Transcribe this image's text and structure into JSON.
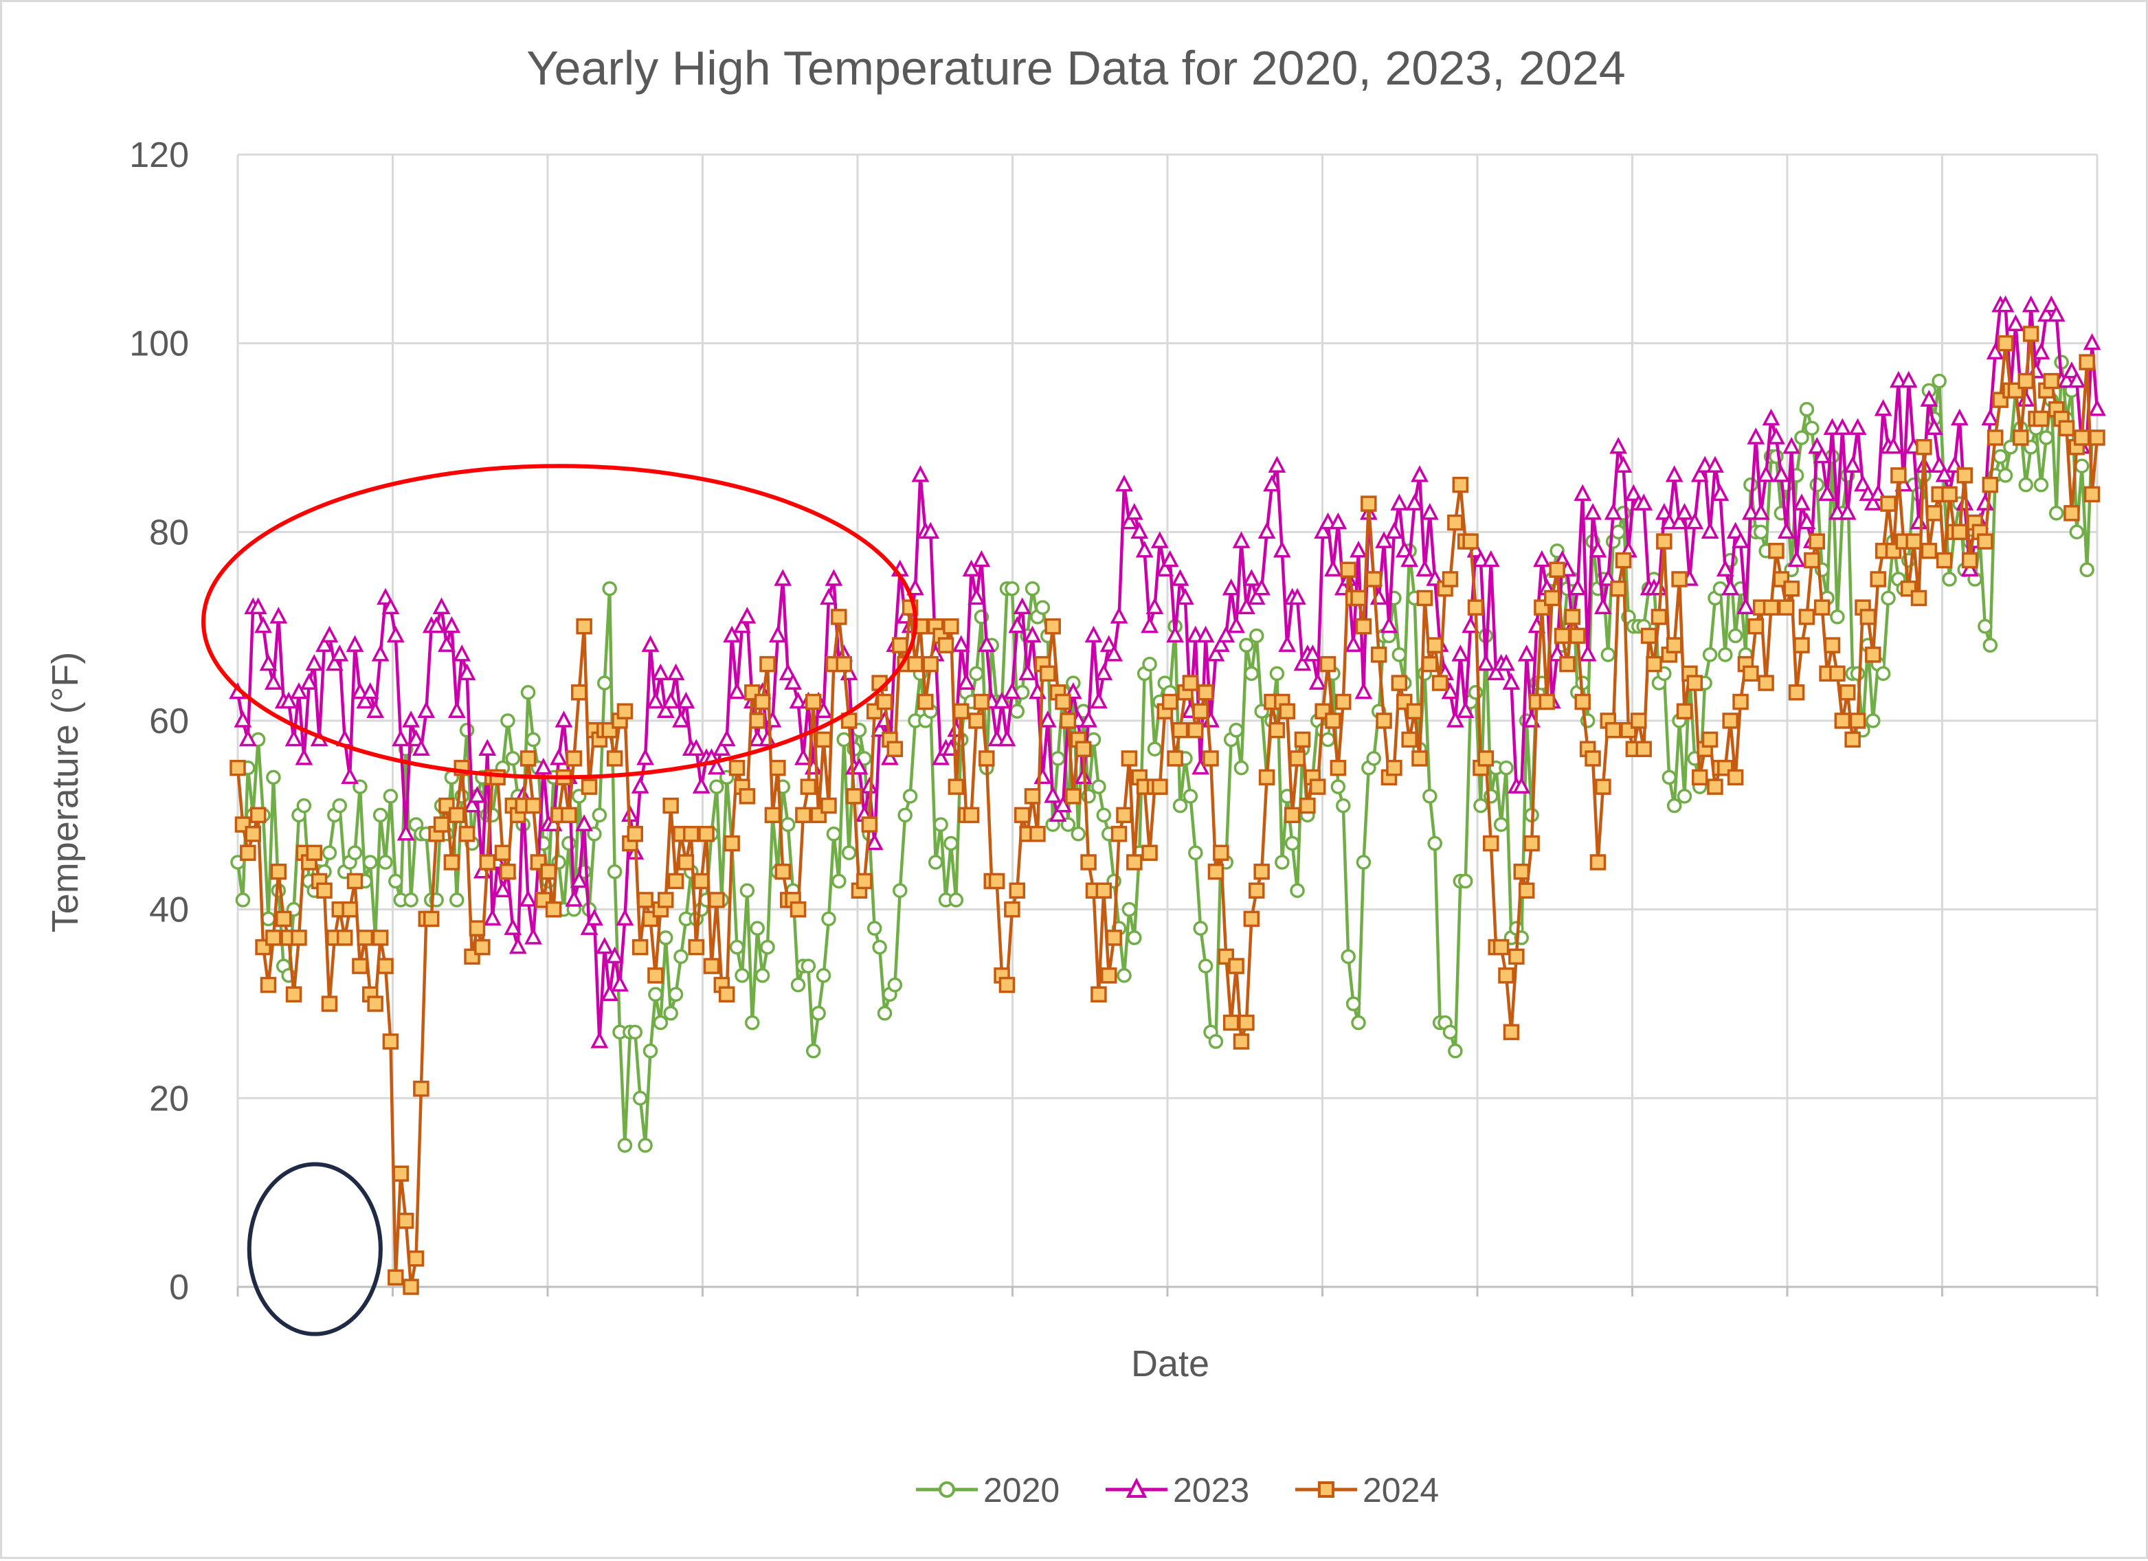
{
  "chart_data": {
    "type": "line",
    "title": "Yearly High Temperature Data for 2020, 2023, 2024",
    "xlabel": "Date",
    "ylabel": "Temperature (°F)",
    "ylim": [
      0,
      120
    ],
    "y_ticks": [
      "0",
      "20",
      "40",
      "60",
      "80",
      "100",
      "120"
    ],
    "x_range_days": [
      1,
      366
    ],
    "grid": true,
    "legend_position": "bottom",
    "series": [
      {
        "name": "2020",
        "color": "#70ad47",
        "marker": "circle",
        "anchors": [
          [
            1,
            45
          ],
          [
            6,
            50
          ],
          [
            12,
            40
          ],
          [
            18,
            44
          ],
          [
            24,
            46
          ],
          [
            30,
            45
          ],
          [
            36,
            49
          ],
          [
            42,
            48
          ],
          [
            48,
            52
          ],
          [
            52,
            54
          ],
          [
            55,
            56
          ],
          [
            60,
            55
          ],
          [
            62,
            43
          ],
          [
            66,
            47
          ],
          [
            70,
            40
          ],
          [
            74,
            74
          ],
          [
            76,
            27
          ],
          [
            80,
            20
          ],
          [
            84,
            28
          ],
          [
            88,
            35
          ],
          [
            92,
            40
          ],
          [
            98,
            47
          ],
          [
            102,
            28
          ],
          [
            106,
            50
          ],
          [
            110,
            42
          ],
          [
            114,
            25
          ],
          [
            118,
            48
          ],
          [
            124,
            56
          ],
          [
            128,
            29
          ],
          [
            132,
            50
          ],
          [
            136,
            60
          ],
          [
            140,
            41
          ],
          [
            146,
            65
          ],
          [
            150,
            62
          ],
          [
            156,
            69
          ],
          [
            162,
            56
          ],
          [
            168,
            52
          ],
          [
            172,
            48
          ],
          [
            176,
            40
          ],
          [
            180,
            66
          ],
          [
            184,
            63
          ],
          [
            188,
            52
          ],
          [
            192,
            27
          ],
          [
            196,
            58
          ],
          [
            200,
            65
          ],
          [
            204,
            60
          ],
          [
            208,
            47
          ],
          [
            212,
            54
          ],
          [
            216,
            65
          ],
          [
            220,
            30
          ],
          [
            222,
            45
          ],
          [
            228,
            73
          ],
          [
            234,
            65
          ],
          [
            238,
            28
          ],
          [
            240,
            25
          ],
          [
            244,
            63
          ],
          [
            248,
            55
          ],
          [
            252,
            38
          ],
          [
            256,
            64
          ],
          [
            260,
            78
          ],
          [
            264,
            63
          ],
          [
            268,
            74
          ],
          [
            272,
            80
          ],
          [
            276,
            70
          ],
          [
            280,
            64
          ],
          [
            284,
            60
          ],
          [
            288,
            53
          ],
          [
            292,
            74
          ],
          [
            296,
            74
          ],
          [
            300,
            80
          ],
          [
            304,
            82
          ],
          [
            308,
            90
          ],
          [
            312,
            76
          ],
          [
            316,
            82
          ],
          [
            320,
            59
          ],
          [
            324,
            65
          ],
          [
            330,
            85
          ],
          [
            334,
            92
          ],
          [
            338,
            80
          ],
          [
            342,
            75
          ],
          [
            344,
            70
          ],
          [
            350,
            95
          ],
          [
            356,
            90
          ],
          [
            360,
            92
          ],
          [
            362,
            80
          ],
          [
            366,
            90
          ]
        ],
        "jitter": 10
      },
      {
        "name": "2023",
        "color": "#cc00aa",
        "marker": "triangle",
        "anchors": [
          [
            1,
            63
          ],
          [
            6,
            70
          ],
          [
            10,
            62
          ],
          [
            14,
            56
          ],
          [
            18,
            68
          ],
          [
            22,
            58
          ],
          [
            26,
            62
          ],
          [
            30,
            73
          ],
          [
            34,
            48
          ],
          [
            38,
            61
          ],
          [
            42,
            68
          ],
          [
            48,
            52
          ],
          [
            54,
            44
          ],
          [
            60,
            45
          ],
          [
            66,
            54
          ],
          [
            70,
            38
          ],
          [
            74,
            31
          ],
          [
            78,
            50
          ],
          [
            82,
            68
          ],
          [
            86,
            62
          ],
          [
            92,
            53
          ],
          [
            98,
            69
          ],
          [
            104,
            63
          ],
          [
            108,
            75
          ],
          [
            114,
            55
          ],
          [
            118,
            75
          ],
          [
            124,
            50
          ],
          [
            128,
            60
          ],
          [
            132,
            71
          ],
          [
            136,
            80
          ],
          [
            140,
            57
          ],
          [
            146,
            73
          ],
          [
            150,
            58
          ],
          [
            156,
            65
          ],
          [
            162,
            50
          ],
          [
            168,
            60
          ],
          [
            172,
            68
          ],
          [
            176,
            81
          ],
          [
            180,
            70
          ],
          [
            184,
            77
          ],
          [
            188,
            61
          ],
          [
            192,
            60
          ],
          [
            196,
            74
          ],
          [
            200,
            75
          ],
          [
            204,
            85
          ],
          [
            208,
            73
          ],
          [
            212,
            67
          ],
          [
            216,
            76
          ],
          [
            220,
            68
          ],
          [
            224,
            75
          ],
          [
            228,
            80
          ],
          [
            232,
            83
          ],
          [
            236,
            75
          ],
          [
            240,
            60
          ],
          [
            244,
            78
          ],
          [
            248,
            65
          ],
          [
            252,
            53
          ],
          [
            256,
            70
          ],
          [
            260,
            67
          ],
          [
            264,
            74
          ],
          [
            268,
            78
          ],
          [
            272,
            89
          ],
          [
            276,
            83
          ],
          [
            280,
            74
          ],
          [
            284,
            81
          ],
          [
            288,
            86
          ],
          [
            292,
            84
          ],
          [
            296,
            79
          ],
          [
            300,
            82
          ],
          [
            304,
            86
          ],
          [
            308,
            83
          ],
          [
            312,
            88
          ],
          [
            316,
            91
          ],
          [
            320,
            85
          ],
          [
            324,
            93
          ],
          [
            330,
            89
          ],
          [
            334,
            91
          ],
          [
            338,
            87
          ],
          [
            342,
            79
          ],
          [
            346,
            99
          ],
          [
            350,
            102
          ],
          [
            356,
            103
          ],
          [
            360,
            96
          ],
          [
            366,
            93
          ]
        ],
        "jitter": 9
      },
      {
        "name": "2024",
        "color": "#c55a11",
        "marker": "square",
        "anchors": [
          [
            1,
            55
          ],
          [
            4,
            48
          ],
          [
            7,
            32
          ],
          [
            10,
            39
          ],
          [
            13,
            37
          ],
          [
            16,
            46
          ],
          [
            19,
            30
          ],
          [
            22,
            37
          ],
          [
            25,
            34
          ],
          [
            28,
            30
          ],
          [
            30,
            34
          ],
          [
            32,
            1
          ],
          [
            34,
            7
          ],
          [
            36,
            3
          ],
          [
            38,
            39
          ],
          [
            40,
            48
          ],
          [
            44,
            50
          ],
          [
            48,
            38
          ],
          [
            52,
            54
          ],
          [
            56,
            50
          ],
          [
            60,
            45
          ],
          [
            64,
            50
          ],
          [
            68,
            63
          ],
          [
            72,
            58
          ],
          [
            76,
            60
          ],
          [
            80,
            36
          ],
          [
            84,
            40
          ],
          [
            88,
            48
          ],
          [
            92,
            43
          ],
          [
            96,
            32
          ],
          [
            100,
            53
          ],
          [
            104,
            62
          ],
          [
            108,
            44
          ],
          [
            112,
            50
          ],
          [
            116,
            58
          ],
          [
            120,
            66
          ],
          [
            124,
            43
          ],
          [
            128,
            62
          ],
          [
            132,
            66
          ],
          [
            136,
            62
          ],
          [
            140,
            68
          ],
          [
            144,
            50
          ],
          [
            148,
            56
          ],
          [
            152,
            32
          ],
          [
            156,
            48
          ],
          [
            160,
            65
          ],
          [
            164,
            60
          ],
          [
            168,
            45
          ],
          [
            172,
            33
          ],
          [
            176,
            56
          ],
          [
            180,
            46
          ],
          [
            184,
            62
          ],
          [
            188,
            64
          ],
          [
            192,
            56
          ],
          [
            196,
            28
          ],
          [
            200,
            39
          ],
          [
            204,
            62
          ],
          [
            208,
            50
          ],
          [
            212,
            54
          ],
          [
            216,
            60
          ],
          [
            220,
            73
          ],
          [
            224,
            75
          ],
          [
            228,
            55
          ],
          [
            232,
            61
          ],
          [
            236,
            68
          ],
          [
            240,
            81
          ],
          [
            244,
            72
          ],
          [
            248,
            36
          ],
          [
            252,
            35
          ],
          [
            256,
            62
          ],
          [
            260,
            76
          ],
          [
            264,
            69
          ],
          [
            268,
            45
          ],
          [
            272,
            74
          ],
          [
            276,
            60
          ],
          [
            280,
            71
          ],
          [
            284,
            75
          ],
          [
            288,
            54
          ],
          [
            292,
            55
          ],
          [
            296,
            62
          ],
          [
            300,
            72
          ],
          [
            304,
            75
          ],
          [
            308,
            68
          ],
          [
            312,
            72
          ],
          [
            316,
            60
          ],
          [
            320,
            72
          ],
          [
            324,
            78
          ],
          [
            330,
            79
          ],
          [
            334,
            82
          ],
          [
            338,
            80
          ],
          [
            342,
            81
          ],
          [
            346,
            90
          ],
          [
            350,
            95
          ],
          [
            356,
            95
          ],
          [
            360,
            91
          ],
          [
            366,
            90
          ]
        ],
        "jitter": 9
      }
    ],
    "legend": [
      "2020",
      "2023",
      "2024"
    ],
    "annotations": [
      {
        "shape": "ellipse",
        "color": "#ff0000",
        "description_region_days": [
          1,
          130
        ],
        "description_region_temps": [
          54,
          87
        ]
      },
      {
        "shape": "ellipse",
        "color": "#1f2a44",
        "description_region_days": [
          10,
          25
        ],
        "description_region_temps": [
          -5,
          13
        ]
      }
    ]
  }
}
